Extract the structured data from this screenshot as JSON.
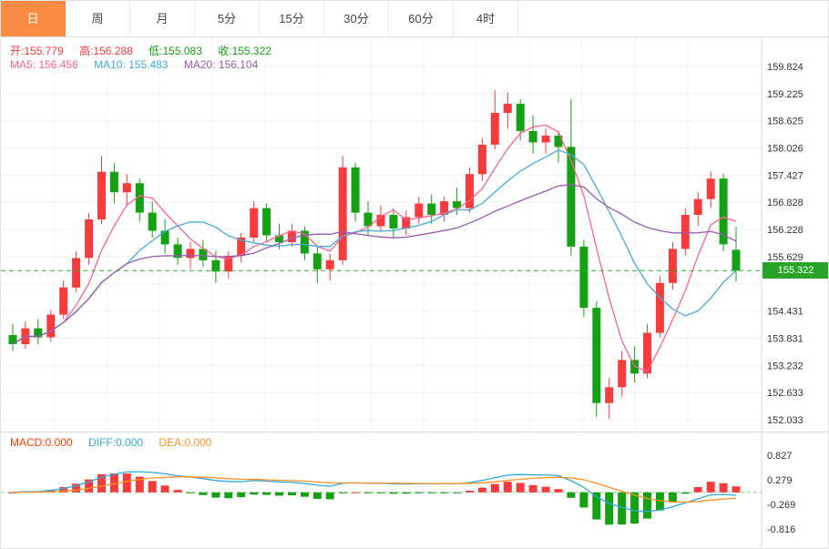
{
  "toolbar": {
    "tabs": [
      {
        "label": "日",
        "active": true
      },
      {
        "label": "周",
        "active": false
      },
      {
        "label": "月",
        "active": false
      },
      {
        "label": "5分",
        "active": false
      },
      {
        "label": "15分",
        "active": false
      },
      {
        "label": "30分",
        "active": false
      },
      {
        "label": "60分",
        "active": false
      },
      {
        "label": "4时",
        "active": false
      }
    ]
  },
  "main_info": {
    "ohlc": [
      {
        "label": "开:",
        "value": "155.779",
        "color": "#f53b3b"
      },
      {
        "label": "高:",
        "value": "156.288",
        "color": "#f53b3b"
      },
      {
        "label": "低:",
        "value": "155.083",
        "color": "#14a114"
      },
      {
        "label": "收:",
        "value": "155.322",
        "color": "#14a114"
      }
    ],
    "ma": [
      {
        "label": "MA5:",
        "value": "156.456",
        "color": "#ff6090"
      },
      {
        "label": "MA10:",
        "value": "155.483",
        "color": "#45aadd"
      },
      {
        "label": "MA20:",
        "value": "156.104",
        "color": "#9b59b6"
      }
    ]
  },
  "macd_info": [
    {
      "label": "MACD:",
      "value": "0.000",
      "color": "#ff3c00"
    },
    {
      "label": "DIFF:",
      "value": "0.000",
      "color": "#2ea8e0"
    },
    {
      "label": "DEA:",
      "value": "0.000",
      "color": "#ff9122"
    }
  ],
  "price_badge": {
    "value": "155.322"
  },
  "colors": {
    "up": "#f53b3b",
    "down": "#14a114",
    "ma5": "#ff6090",
    "ma10": "#45aadd",
    "ma20": "#9b59b6",
    "diff": "#2ea8e0",
    "dea": "#ff9122",
    "price_line": "#2db32d",
    "badge_bg": "#28a428",
    "tab_active_bg": "#fa8b44",
    "grid": "#f0f0f0",
    "axis_text": "#333333",
    "border": "#d8d8d8",
    "zero_line": "#8fce8f"
  },
  "chart_data": {
    "type": "candlestick",
    "title": "Daily K-line with MA5/MA10/MA20 and MACD panel",
    "legend": [
      "MA5",
      "MA10",
      "MA20",
      "MACD",
      "DIFF",
      "DEA"
    ],
    "y_axis": {
      "min": 152.033,
      "max": 159.824,
      "tick_step": 0.5993,
      "labels": [
        "159.824",
        "159.225",
        "158.625",
        "158.026",
        "157.427",
        "156.828",
        "156.228",
        "155.629",
        "154.431",
        "153.831",
        "153.232",
        "152.633",
        "152.033"
      ]
    },
    "last_price": 155.322,
    "ma_periods": [
      5,
      10,
      20
    ],
    "candles_ohlc": [
      [
        153.9,
        154.15,
        153.55,
        153.7
      ],
      [
        153.7,
        154.2,
        153.6,
        154.05
      ],
      [
        154.05,
        154.25,
        153.7,
        153.85
      ],
      [
        153.85,
        154.45,
        153.75,
        154.35
      ],
      [
        154.35,
        155.1,
        154.25,
        154.95
      ],
      [
        154.95,
        155.75,
        154.85,
        155.6
      ],
      [
        155.6,
        156.6,
        155.45,
        156.45
      ],
      [
        156.45,
        157.85,
        156.35,
        157.5
      ],
      [
        157.5,
        157.7,
        156.8,
        157.05
      ],
      [
        157.05,
        157.45,
        156.75,
        157.25
      ],
      [
        157.25,
        157.35,
        156.4,
        156.6
      ],
      [
        156.6,
        156.85,
        156.05,
        156.2
      ],
      [
        156.2,
        156.45,
        155.7,
        155.9
      ],
      [
        155.9,
        156.05,
        155.45,
        155.6
      ],
      [
        155.6,
        155.95,
        155.35,
        155.8
      ],
      [
        155.8,
        156.0,
        155.4,
        155.55
      ],
      [
        155.55,
        155.75,
        155.05,
        155.3
      ],
      [
        155.3,
        155.75,
        155.15,
        155.65
      ],
      [
        155.65,
        156.15,
        155.5,
        156.05
      ],
      [
        156.05,
        156.85,
        155.95,
        156.7
      ],
      [
        156.7,
        156.8,
        155.95,
        156.1
      ],
      [
        156.1,
        156.35,
        155.8,
        155.95
      ],
      [
        155.95,
        156.35,
        155.85,
        156.2
      ],
      [
        156.2,
        156.3,
        155.55,
        155.7
      ],
      [
        155.7,
        155.85,
        155.05,
        155.35
      ],
      [
        155.35,
        155.7,
        155.1,
        155.55
      ],
      [
        155.55,
        157.85,
        155.45,
        157.6
      ],
      [
        157.6,
        157.7,
        156.4,
        156.6
      ],
      [
        156.6,
        156.85,
        156.1,
        156.3
      ],
      [
        156.3,
        156.75,
        156.2,
        156.55
      ],
      [
        156.55,
        156.7,
        156.05,
        156.25
      ],
      [
        156.25,
        156.65,
        156.1,
        156.5
      ],
      [
        156.5,
        156.95,
        156.35,
        156.8
      ],
      [
        156.8,
        157.0,
        156.35,
        156.55
      ],
      [
        156.55,
        156.95,
        156.4,
        156.85
      ],
      [
        156.85,
        157.15,
        156.55,
        156.7
      ],
      [
        156.7,
        157.6,
        156.6,
        157.45
      ],
      [
        157.45,
        158.25,
        157.3,
        158.1
      ],
      [
        158.1,
        159.3,
        158.0,
        158.8
      ],
      [
        158.8,
        159.25,
        158.45,
        159.0
      ],
      [
        159.0,
        159.1,
        158.2,
        158.4
      ],
      [
        158.4,
        158.75,
        157.9,
        158.15
      ],
      [
        158.15,
        158.45,
        157.9,
        158.3
      ],
      [
        158.3,
        158.4,
        157.7,
        158.05
      ],
      [
        158.05,
        159.1,
        155.65,
        155.85
      ],
      [
        155.85,
        156.0,
        154.3,
        154.5
      ],
      [
        154.5,
        154.65,
        152.1,
        152.4
      ],
      [
        152.4,
        152.95,
        152.05,
        152.75
      ],
      [
        152.75,
        153.55,
        152.55,
        153.35
      ],
      [
        153.35,
        153.65,
        152.85,
        153.05
      ],
      [
        153.05,
        154.15,
        152.95,
        153.95
      ],
      [
        153.95,
        155.2,
        153.85,
        155.05
      ],
      [
        155.05,
        155.95,
        154.9,
        155.8
      ],
      [
        155.8,
        156.7,
        155.65,
        156.55
      ],
      [
        156.55,
        157.05,
        156.3,
        156.9
      ],
      [
        156.9,
        157.5,
        156.7,
        157.35
      ],
      [
        157.35,
        157.45,
        155.75,
        155.9
      ],
      [
        155.779,
        156.288,
        155.083,
        155.322
      ]
    ],
    "macd_panel": {
      "y_labels": [
        "0.827",
        "0.279",
        "-0.269",
        "-0.816"
      ],
      "y_top_value": 0.827,
      "y_bottom_value": -0.816,
      "params": "12,26,9"
    }
  }
}
